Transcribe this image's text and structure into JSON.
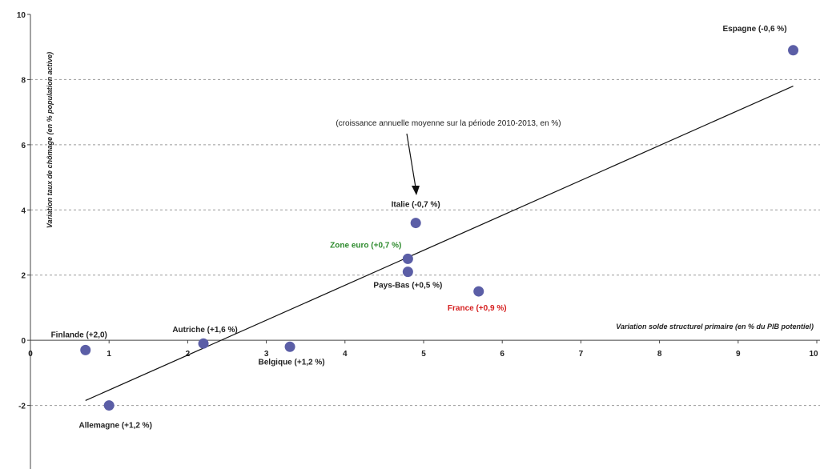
{
  "chart_data": {
    "type": "scatter",
    "xlabel": "Variation solde structurel primaire (en % du PIB potentiel)",
    "ylabel": "Variation taux de chômage (en % population active)",
    "annotation": "(croissance annuelle moyenne sur la période 2010-2013, en %)",
    "xlim": [
      0,
      10
    ],
    "ylim": [
      -4,
      10
    ],
    "x_ticks": [
      "0",
      "1",
      "2",
      "3",
      "4",
      "5",
      "6",
      "7",
      "8",
      "9",
      "10"
    ],
    "y_ticks": [
      "10",
      "8",
      "6",
      "4",
      "2",
      "0",
      "-2"
    ],
    "grid": "horizontal dashed",
    "marker_color": "#5b5ea6",
    "points": [
      {
        "label": "Espagne (-0,6 %)",
        "x": 9.7,
        "y": 8.9,
        "color": "#222222"
      },
      {
        "label": "Italie (-0,7 %)",
        "x": 4.9,
        "y": 3.6,
        "color": "#222222"
      },
      {
        "label": "Zone euro (+0,7 %)",
        "x": 4.8,
        "y": 2.5,
        "color": "#2e8b2e"
      },
      {
        "label": "Pays-Bas (+0,5 %)",
        "x": 4.8,
        "y": 2.1,
        "color": "#222222"
      },
      {
        "label": "France (+0,9 %)",
        "x": 5.7,
        "y": 1.5,
        "color": "#d62020"
      },
      {
        "label": "Finlande (+2,0)",
        "x": 0.7,
        "y": -0.3,
        "color": "#222222"
      },
      {
        "label": "Autriche (+1,6 %)",
        "x": 2.2,
        "y": -0.1,
        "color": "#222222"
      },
      {
        "label": "Belgique (+1,2 %)",
        "x": 3.3,
        "y": -0.2,
        "color": "#222222"
      },
      {
        "label": "Allemagne (+1,2 %)",
        "x": 1.0,
        "y": -2.0,
        "color": "#222222"
      }
    ],
    "trendline": {
      "x": [
        0.7,
        9.7
      ],
      "y": [
        -1.85,
        7.8
      ],
      "color": "#111111"
    }
  }
}
